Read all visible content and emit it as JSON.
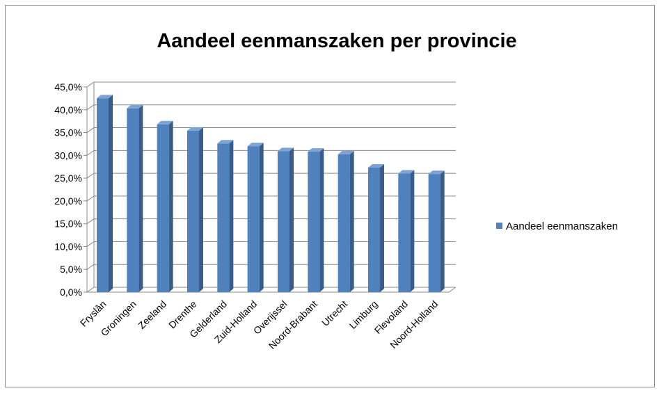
{
  "chart_data": {
    "type": "bar3d",
    "title": "Aandeel eenmanszaken per provincie",
    "categories": [
      "Fryslân",
      "Groningen",
      "Zeeland",
      "Drenthe",
      "Gelderland",
      "Zuid-Holland",
      "Overijssel",
      "Noord-Brabant",
      "Utrecht",
      "Limburg",
      "Flevoland",
      "Noord-Holland"
    ],
    "series": [
      {
        "name": "Aandeel eenmanszaken",
        "color": "#4f81bd",
        "values": [
          42.5,
          40.3,
          36.8,
          35.4,
          32.6,
          32.0,
          30.9,
          30.8,
          30.2,
          27.3,
          26.0,
          25.9
        ]
      }
    ],
    "ylim": [
      0,
      45
    ],
    "yticks": [
      {
        "value": 0,
        "label": "0,0%"
      },
      {
        "value": 5,
        "label": "5,0%"
      },
      {
        "value": 10,
        "label": "10,0%"
      },
      {
        "value": 15,
        "label": "15,0%"
      },
      {
        "value": 20,
        "label": "20,0%"
      },
      {
        "value": 25,
        "label": "25,0%"
      },
      {
        "value": 30,
        "label": "30,0%"
      },
      {
        "value": 35,
        "label": "35,0%"
      },
      {
        "value": 40,
        "label": "40,0%"
      },
      {
        "value": 45,
        "label": "45,0%"
      }
    ],
    "grid": true,
    "legend": "right"
  }
}
